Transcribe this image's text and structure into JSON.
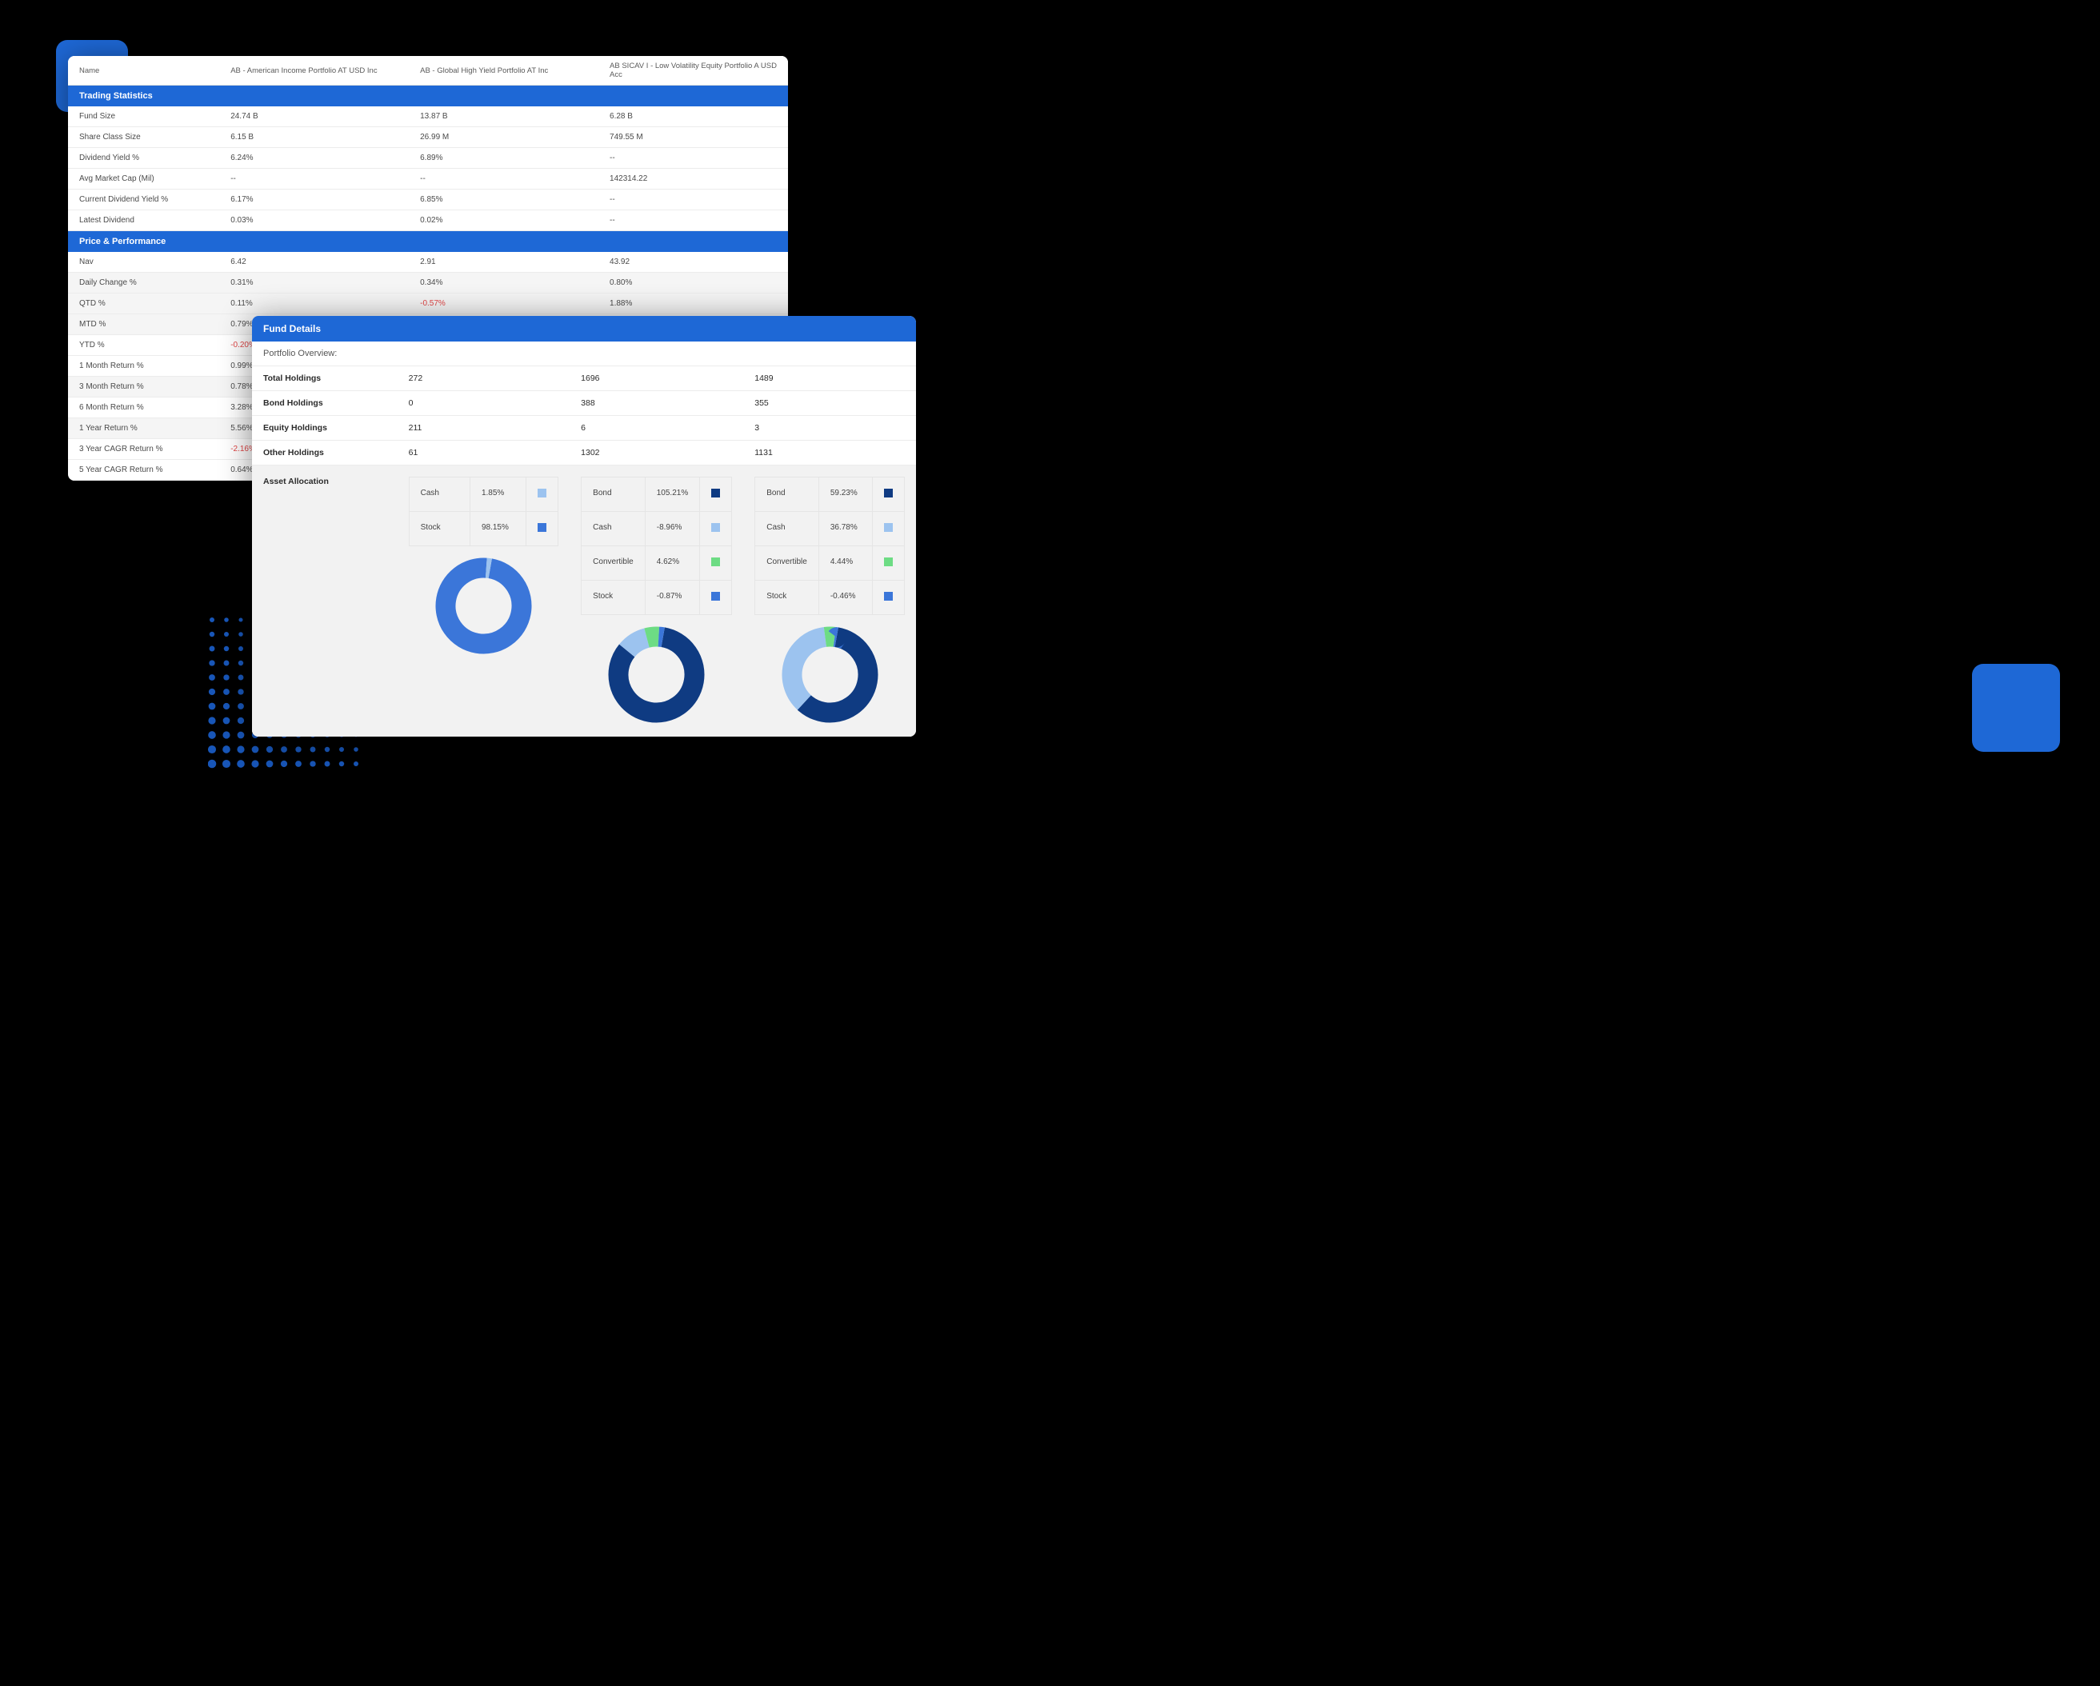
{
  "colors": {
    "accent": "#1e68d6",
    "white": "#ffffff",
    "border": "#ececec",
    "negative": "#e24545",
    "stripe": "#f5f5f5",
    "heavyNavy": "#0f3b82",
    "midBlue": "#3b76d9",
    "lightBlue": "#9cc3ef",
    "green": "#6ddc84"
  },
  "back": {
    "header": {
      "nameLabel": "Name",
      "funds": [
        "AB - American Income Portfolio AT USD Inc",
        "AB - Global High Yield Portfolio AT Inc",
        "AB SICAV I - Low Volatility Equity Portfolio A USD Acc"
      ]
    },
    "s1": {
      "title": "Trading Statistics",
      "rows": [
        {
          "label": "Fund Size",
          "v": [
            "24.74 B",
            "13.87 B",
            "6.28 B"
          ]
        },
        {
          "label": "Share Class Size",
          "v": [
            "6.15 B",
            "26.99 M",
            "749.55 M"
          ]
        },
        {
          "label": "Dividend Yield %",
          "v": [
            "6.24%",
            "6.89%",
            "--"
          ]
        },
        {
          "label": "Avg Market Cap (Mil)",
          "v": [
            "--",
            "--",
            "142314.22"
          ]
        },
        {
          "label": "Current Dividend Yield %",
          "v": [
            "6.17%",
            "6.85%",
            "--"
          ]
        },
        {
          "label": "Latest Dividend",
          "v": [
            "0.03%",
            "0.02%",
            "--"
          ]
        }
      ]
    },
    "s2": {
      "title": "Price & Performance",
      "rows": [
        {
          "label": "Nav",
          "v": [
            "6.42",
            "2.91",
            "43.92"
          ]
        },
        {
          "label": "Daily Change %",
          "v": [
            "0.31%",
            "0.34%",
            "0.80%"
          ],
          "stripe": true
        },
        {
          "label": "QTD %",
          "v": [
            "0.11%",
            "-0.57%",
            "1.88%"
          ],
          "stripe": true,
          "neg": [
            false,
            true,
            false
          ]
        },
        {
          "label": "MTD %",
          "v": [
            "0.79%",
            "",
            ""
          ],
          "stripe": true
        },
        {
          "label": "YTD %",
          "v": [
            "-0.20%",
            "",
            ""
          ],
          "neg": [
            true,
            false,
            false
          ]
        },
        {
          "label": "1 Month Return %",
          "v": [
            "0.99%",
            "",
            ""
          ]
        },
        {
          "label": "3 Month Return %",
          "v": [
            "0.78%",
            "",
            ""
          ],
          "stripe": true
        },
        {
          "label": "6 Month Return %",
          "v": [
            "3.28%",
            "",
            ""
          ]
        },
        {
          "label": "1 Year Return %",
          "v": [
            "5.56%",
            "",
            ""
          ],
          "stripe": true
        },
        {
          "label": "3 Year CAGR Return %",
          "v": [
            "-2.16%",
            "",
            ""
          ],
          "neg": [
            true,
            false,
            false
          ]
        },
        {
          "label": "5 Year CAGR Return %",
          "v": [
            "0.64%",
            "",
            ""
          ]
        }
      ]
    }
  },
  "front": {
    "title": "Fund Details",
    "subtitle": "Portfolio Overview:",
    "rows": [
      {
        "label": "Total Holdings",
        "v": [
          "272",
          "1696",
          "1489"
        ]
      },
      {
        "label": "Bond Holdings",
        "v": [
          "0",
          "388",
          "355"
        ]
      },
      {
        "label": "Equity Holdings",
        "v": [
          "211",
          "6",
          "3"
        ]
      },
      {
        "label": "Other Holdings",
        "v": [
          "61",
          "1302",
          "1131"
        ]
      }
    ],
    "allocLabel": "Asset Allocation",
    "alloc": [
      {
        "items": [
          {
            "label": "Cash",
            "pct": "1.85%",
            "color": "#9cc3ef"
          },
          {
            "label": "Stock",
            "pct": "98.15%",
            "color": "#3b76d9"
          }
        ],
        "donut": {
          "size": 125,
          "thickness": 20,
          "segments": [
            {
              "color": "#3b76d9",
              "frac": 0.9815
            },
            {
              "color": "#9cc3ef",
              "frac": 0.0185
            }
          ]
        }
      },
      {
        "items": [
          {
            "label": "Bond",
            "pct": "105.21%",
            "color": "#0f3b82"
          },
          {
            "label": "Cash",
            "pct": "-8.96%",
            "color": "#9cc3ef"
          },
          {
            "label": "Convertible",
            "pct": "4.62%",
            "color": "#6ddc84"
          },
          {
            "label": "Stock",
            "pct": "-0.87%",
            "color": "#3b76d9"
          }
        ],
        "donut": {
          "size": 125,
          "thickness": 20,
          "segments": [
            {
              "color": "#0f3b82",
              "frac": 0.83
            },
            {
              "color": "#9cc3ef",
              "frac": 0.1
            },
            {
              "color": "#6ddc84",
              "frac": 0.05
            },
            {
              "color": "#3b76d9",
              "frac": 0.02
            }
          ]
        }
      },
      {
        "items": [
          {
            "label": "Bond",
            "pct": "59.23%",
            "color": "#0f3b82"
          },
          {
            "label": "Cash",
            "pct": "36.78%",
            "color": "#9cc3ef"
          },
          {
            "label": "Convertible",
            "pct": "4.44%",
            "color": "#6ddc84"
          },
          {
            "label": "Stock",
            "pct": "-0.46%",
            "color": "#3b76d9"
          }
        ],
        "donut": {
          "size": 125,
          "thickness": 20,
          "segments": [
            {
              "color": "#0f3b82",
              "frac": 0.59
            },
            {
              "color": "#9cc3ef",
              "frac": 0.36
            },
            {
              "color": "#6ddc84",
              "frac": 0.04
            },
            {
              "color": "#3b76d9",
              "frac": 0.01
            }
          ]
        }
      }
    ]
  }
}
